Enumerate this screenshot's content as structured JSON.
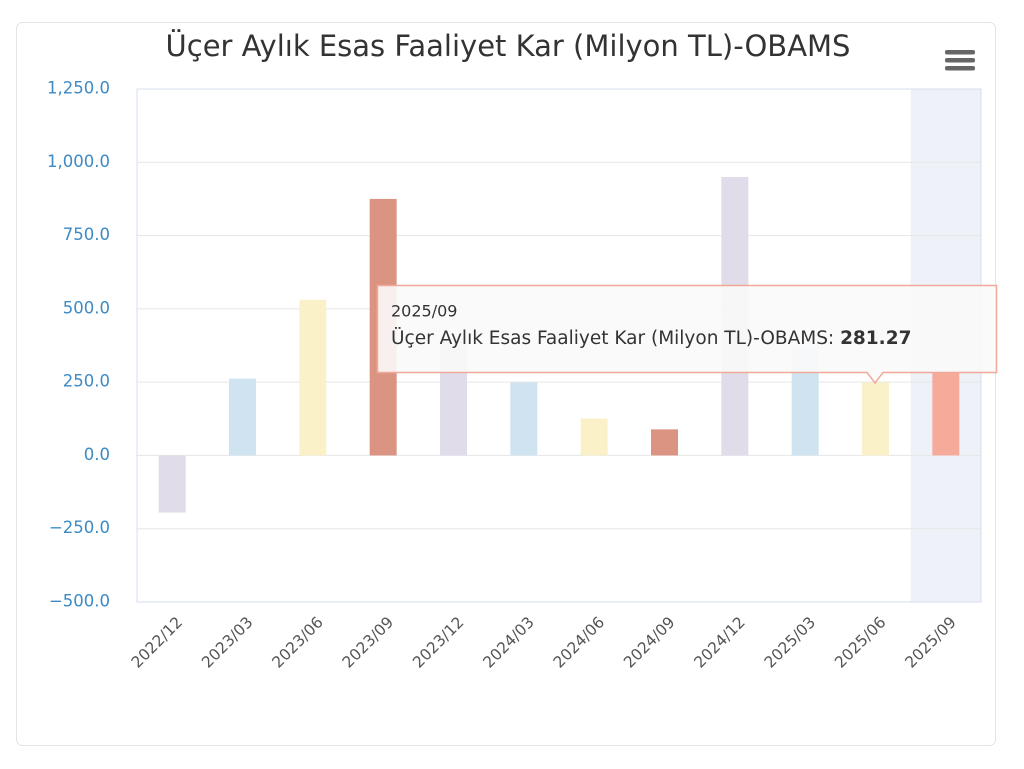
{
  "chart_data": {
    "type": "bar",
    "title": "Üçer Aylık Esas Faaliyet Kar (Milyon TL)-OBAMS",
    "categories": [
      "2022/12",
      "2023/03",
      "2023/06",
      "2023/09",
      "2023/12",
      "2024/03",
      "2024/06",
      "2024/09",
      "2024/12",
      "2025/03",
      "2025/06",
      "2025/09"
    ],
    "series": [
      {
        "name": "Üçer Aylık Esas Faaliyet Kar (Milyon TL)-OBAMS",
        "values": [
          -195,
          262,
          531,
          875,
          400,
          249,
          126,
          89,
          950,
          370,
          249,
          281.27
        ],
        "colors": [
          "#e1dcea",
          "#cfe3f1",
          "#fbf1c9",
          "#dc9482",
          "#e1dcea",
          "#cfe3f1",
          "#fbf1c9",
          "#dc9482",
          "#e1dcea",
          "#cfe3f1",
          "#fbf1c9",
          "#f6aa99"
        ]
      }
    ],
    "ylim": [
      -500,
      1250
    ],
    "yticks": [
      {
        "value": -500,
        "label": "−500.0"
      },
      {
        "value": -250,
        "label": "−250.0"
      },
      {
        "value": 0,
        "label": "0.0"
      },
      {
        "value": 250,
        "label": "250.0"
      },
      {
        "value": 500,
        "label": "500.0"
      },
      {
        "value": 750,
        "label": "750.0"
      },
      {
        "value": 1000,
        "label": "1,000.0"
      },
      {
        "value": 1250,
        "label": "1,250.0"
      }
    ],
    "grid": true,
    "highlight_index": 11,
    "tooltip": {
      "category": "2025/09",
      "series_label": "Üçer Aylık Esas Faaliyet Kar (Milyon TL)-OBAMS:",
      "value": "281.27"
    }
  }
}
